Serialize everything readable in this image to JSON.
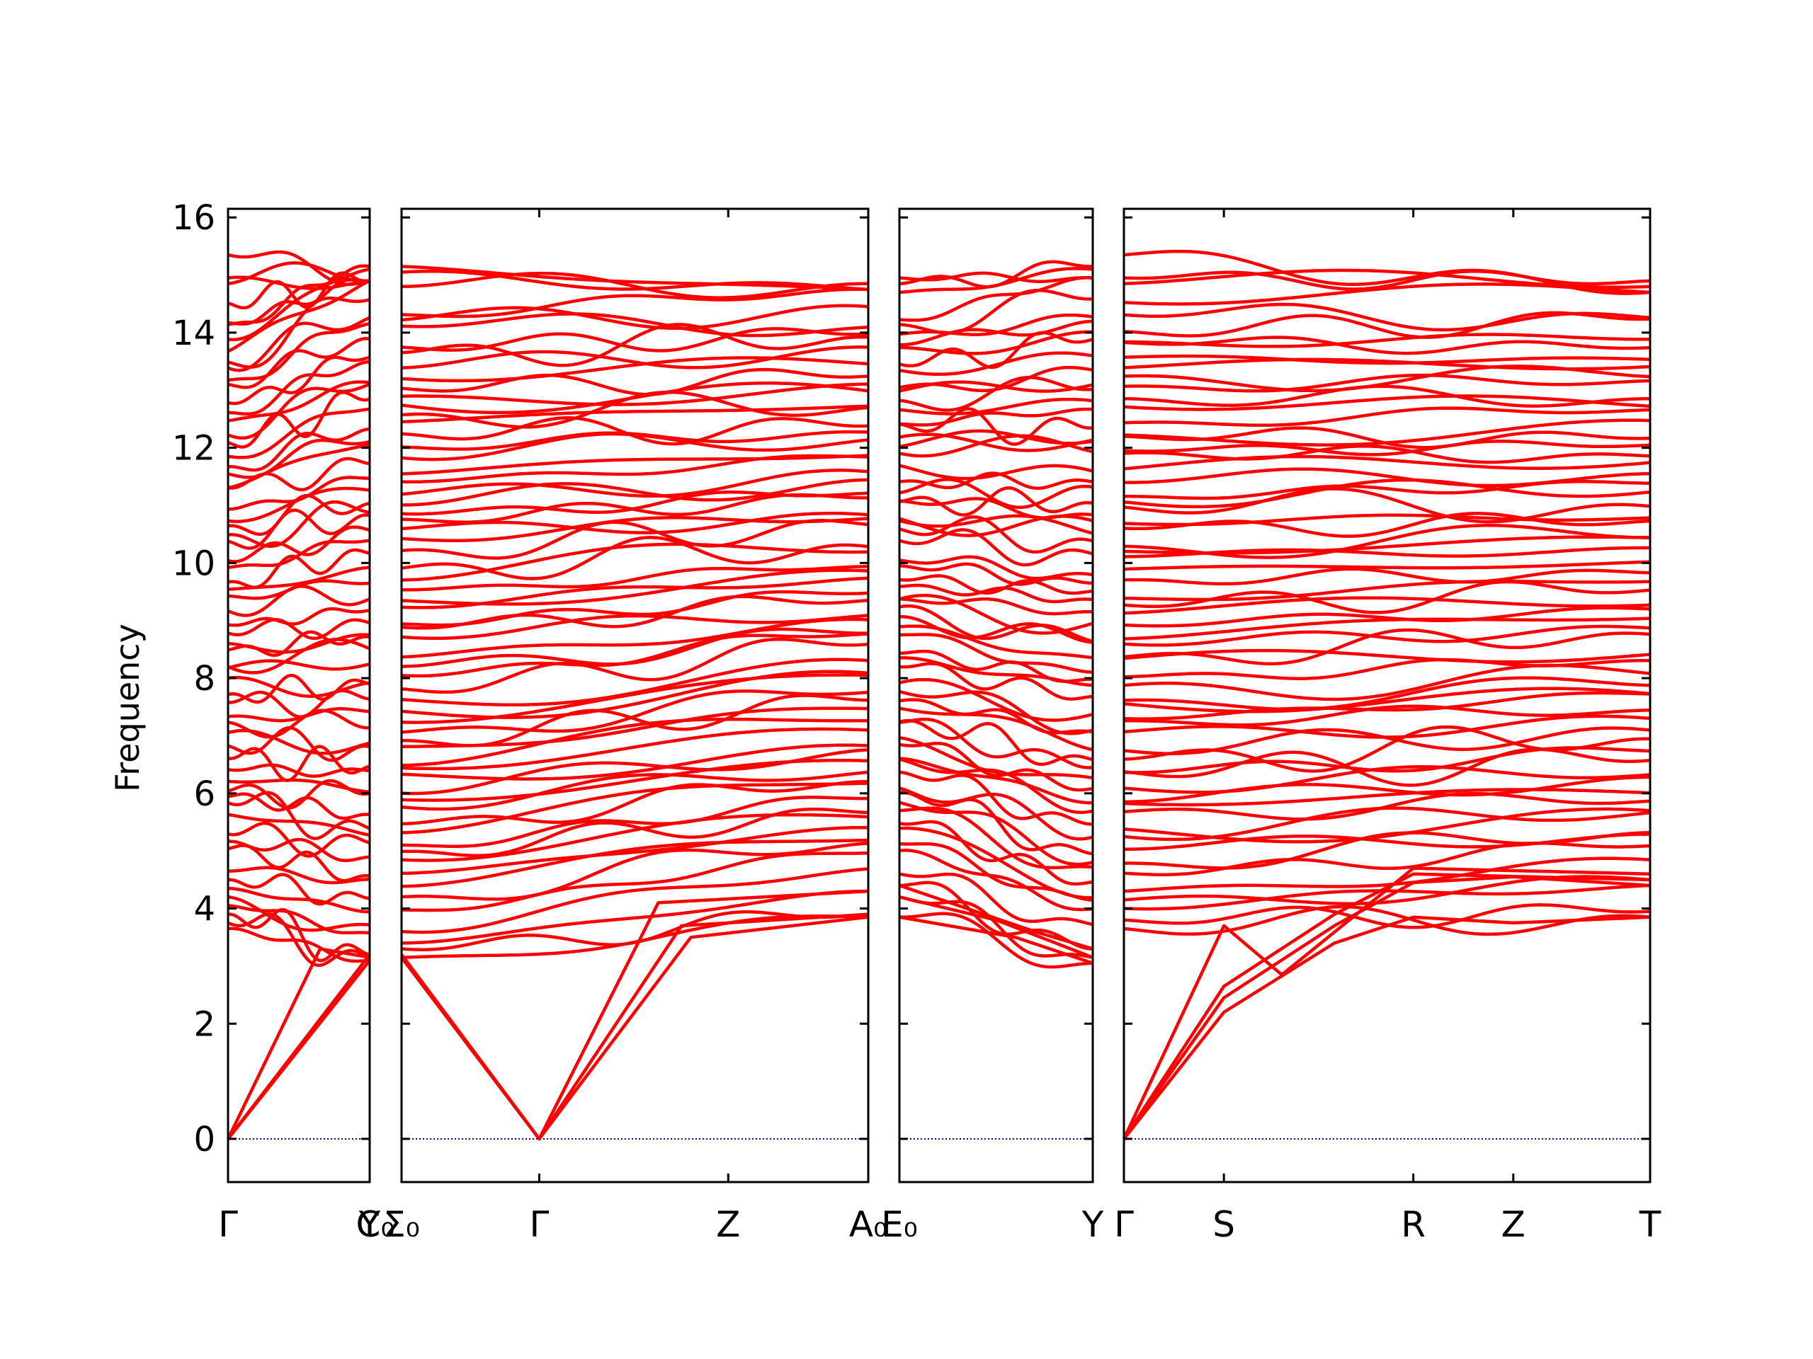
{
  "chart_data": {
    "type": "line",
    "title": "",
    "ylabel": "Frequency",
    "xlabel": "",
    "ylim": [
      -0.75,
      16.15
    ],
    "yticks": [
      "0",
      "2",
      "4",
      "6",
      "8",
      "10",
      "12",
      "14",
      "16"
    ],
    "grid": false,
    "legend": "none",
    "zero_line": {
      "value": 0,
      "color": "#0000aa"
    },
    "band_color": "#ff0000",
    "panels": [
      {
        "x": [
          0,
          1
        ],
        "xticks": [
          {
            "x": 0,
            "label": "Γ"
          },
          {
            "x": 1,
            "label": "Y"
          }
        ],
        "trailing_label": "C₀",
        "start_low": [
          3.65,
          3.75,
          3.9,
          4.05,
          4.2,
          4.35,
          4.5,
          4.65
        ],
        "start_high": [
          14.85,
          14.95,
          15.35
        ],
        "end_low": [
          3.1,
          3.15,
          3.2
        ],
        "end_high": [
          14.9,
          15.1,
          15.15
        ],
        "acoustic": [
          [
            [
              0,
              0
            ],
            [
              0.65,
              3.3
            ],
            [
              1,
              3.15
            ]
          ],
          [
            [
              0,
              0
            ],
            [
              1,
              3.1
            ]
          ],
          [
            [
              0,
              0
            ],
            [
              1,
              3.2
            ]
          ]
        ]
      },
      {
        "x": [
          0,
          0.295,
          0.7,
          1
        ],
        "xticks": [
          {
            "x": 0,
            "label": "Σ₀"
          },
          {
            "x": 0.295,
            "label": "Γ"
          },
          {
            "x": 0.7,
            "label": "Z"
          },
          {
            "x": 1,
            "label": "A₀"
          }
        ],
        "trailing_label": "",
        "start_low": [
          3.15,
          3.3,
          3.4,
          3.6
        ],
        "start_high": [
          14.8,
          15.05,
          15.15
        ],
        "end_low": [
          3.85,
          3.9,
          4.3
        ],
        "end_high": [
          14.75,
          14.85
        ],
        "acoustic": [
          [
            [
              0,
              3.15
            ],
            [
              0.295,
              0
            ],
            [
              0.62,
              3.5
            ],
            [
              1,
              3.85
            ]
          ],
          [
            [
              0,
              3.2
            ],
            [
              0.295,
              0
            ],
            [
              0.6,
              3.7
            ],
            [
              1,
              3.9
            ]
          ],
          [
            [
              0,
              3.15
            ],
            [
              0.295,
              0
            ],
            [
              0.55,
              4.1
            ],
            [
              1,
              4.3
            ]
          ]
        ]
      },
      {
        "x": [
          0,
          1
        ],
        "xticks": [
          {
            "x": 0,
            "label": "E₀"
          },
          {
            "x": 1,
            "label": "Y"
          }
        ],
        "trailing_label": "",
        "start_low": [
          3.85,
          4.2,
          4.4,
          4.6
        ],
        "start_high": [
          14.7,
          14.85,
          14.95
        ],
        "end_low": [
          3.05,
          3.15,
          3.3
        ],
        "end_high": [
          14.95,
          15.1,
          15.15
        ],
        "acoustic": [
          [
            [
              0,
              3.85
            ],
            [
              0.6,
              3.5
            ],
            [
              1,
              3.05
            ]
          ],
          [
            [
              0,
              4.2
            ],
            [
              0.5,
              3.8
            ],
            [
              1,
              3.15
            ]
          ],
          [
            [
              0,
              4.4
            ],
            [
              0.7,
              3.6
            ],
            [
              1,
              3.3
            ]
          ]
        ]
      },
      {
        "x": [
          0,
          0.19,
          0.55,
          0.74,
          1
        ],
        "xticks": [
          {
            "x": 0,
            "label": "Γ"
          },
          {
            "x": 0.19,
            "label": "S"
          },
          {
            "x": 0.55,
            "label": "R"
          },
          {
            "x": 0.74,
            "label": "Z"
          },
          {
            "x": 1,
            "label": "T"
          }
        ],
        "trailing_label": "",
        "start_low": [
          3.65,
          3.8,
          4.0,
          4.15,
          4.3
        ],
        "start_high": [
          14.85,
          14.95,
          15.35
        ],
        "end_low": [
          3.85,
          3.95,
          4.4,
          4.5
        ],
        "end_high": [
          14.7,
          14.8,
          14.9
        ],
        "acoustic": [
          [
            [
              0,
              0
            ],
            [
              0.19,
              2.2
            ],
            [
              0.4,
              3.4
            ],
            [
              0.55,
              3.85
            ],
            [
              0.74,
              3.75
            ],
            [
              1,
              3.85
            ]
          ],
          [
            [
              0,
              0
            ],
            [
              0.19,
              2.45
            ],
            [
              0.4,
              3.7
            ],
            [
              0.55,
              4.45
            ],
            [
              0.74,
              4.55
            ],
            [
              1,
              4.4
            ]
          ],
          [
            [
              0,
              0
            ],
            [
              0.19,
              2.65
            ],
            [
              0.4,
              3.9
            ],
            [
              0.55,
              4.6
            ],
            [
              1,
              4.5
            ]
          ],
          [
            [
              0,
              0
            ],
            [
              0.19,
              3.7
            ],
            [
              0.3,
              2.85
            ],
            [
              0.55,
              4.7
            ],
            [
              1,
              4.6
            ]
          ]
        ]
      }
    ]
  }
}
